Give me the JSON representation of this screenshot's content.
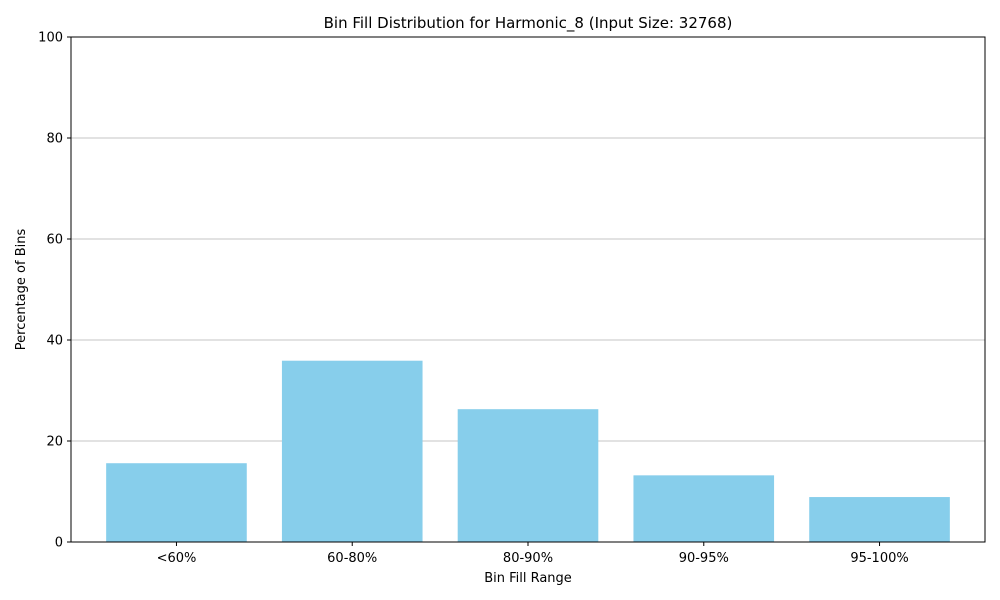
{
  "chart_data": {
    "type": "bar",
    "title": "Bin Fill Distribution for Harmonic_8 (Input Size: 32768)",
    "xlabel": "Bin Fill Range",
    "ylabel": "Percentage of Bins",
    "categories": [
      "<60%",
      "60-80%",
      "80-90%",
      "90-95%",
      "95-100%"
    ],
    "values": [
      15.6,
      35.9,
      26.3,
      13.2,
      8.9
    ],
    "ylim": [
      0,
      100
    ],
    "yticks": [
      0,
      20,
      40,
      60,
      80,
      100
    ],
    "grid": "y-major",
    "bar_color": "#87CEEB"
  }
}
